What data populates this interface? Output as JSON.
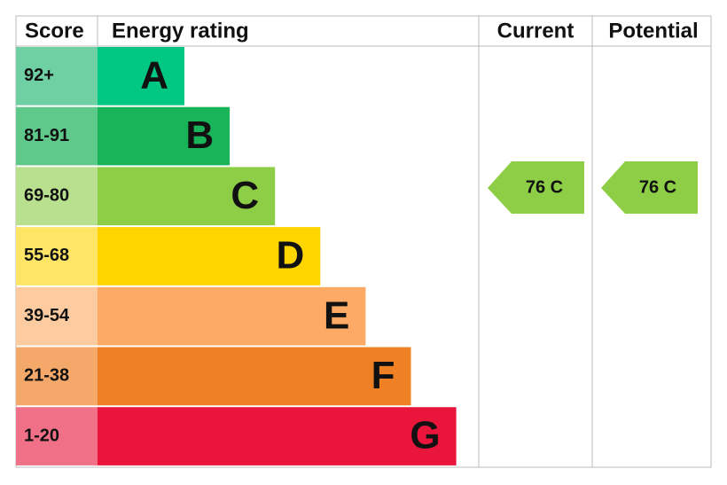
{
  "header": {
    "score": "Score",
    "energy_rating": "Energy rating",
    "current": "Current",
    "potential": "Potential"
  },
  "rows": [
    {
      "score": "92+",
      "rating": "A"
    },
    {
      "score": "81-91",
      "rating": "B"
    },
    {
      "score": "69-80",
      "rating": "C"
    },
    {
      "score": "55-68",
      "rating": "D"
    },
    {
      "score": "39-54",
      "rating": "E"
    },
    {
      "score": "21-38",
      "rating": "F"
    },
    {
      "score": "1-20",
      "rating": "G"
    }
  ],
  "current": "76 C",
  "potential": "76 C"
}
